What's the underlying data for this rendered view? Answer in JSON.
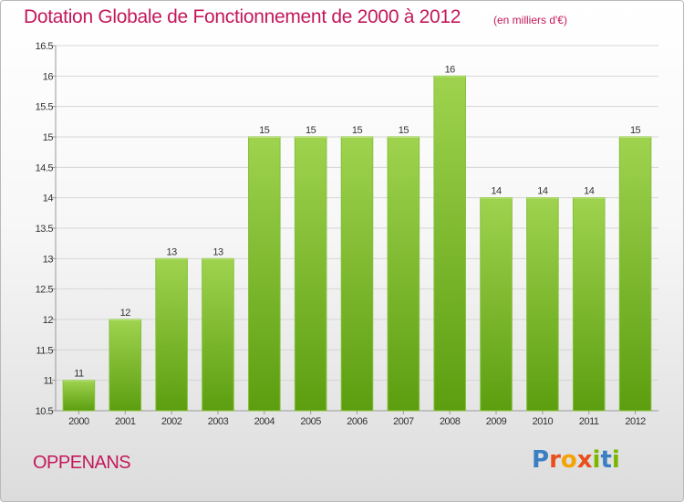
{
  "title": "Dotation Globale de Fonctionnement de 2000 à 2012",
  "subtitle": "(en milliers d'€)",
  "commune": "OPPENANS",
  "logo": {
    "text": "Proxiti",
    "letter_colors": [
      "#3a7fc4",
      "#e94e1b",
      "#f4a300",
      "#e94e1b",
      "#7ab800",
      "#3a7fc4",
      "#7ab800"
    ]
  },
  "colors": {
    "title": "#c4185a",
    "bar_top": "#9fd34f",
    "bar_bottom": "#5c9e10",
    "grid": "#d6d6d6",
    "axis_text": "#333333"
  },
  "chart_data": {
    "type": "bar",
    "categories": [
      "2000",
      "2001",
      "2002",
      "2003",
      "2004",
      "2005",
      "2006",
      "2007",
      "2008",
      "2009",
      "2010",
      "2011",
      "2012"
    ],
    "values": [
      11,
      12,
      13,
      13,
      15,
      15,
      15,
      15,
      16,
      14,
      14,
      14,
      15
    ],
    "data_labels": [
      "11",
      "12",
      "13",
      "13",
      "15",
      "15",
      "15",
      "15",
      "16",
      "14",
      "14",
      "14",
      "15"
    ],
    "ylim": [
      10.5,
      16.5
    ],
    "yticks": [
      10.5,
      11,
      11.5,
      12,
      12.5,
      13,
      13.5,
      14,
      14.5,
      15,
      15.5,
      16,
      16.5
    ],
    "ytick_labels": [
      "10.5",
      "11",
      "11.5",
      "12",
      "12.5",
      "13",
      "13.5",
      "14",
      "14.5",
      "15",
      "15.5",
      "16",
      "16.5"
    ],
    "grid": true,
    "legend": "none"
  }
}
